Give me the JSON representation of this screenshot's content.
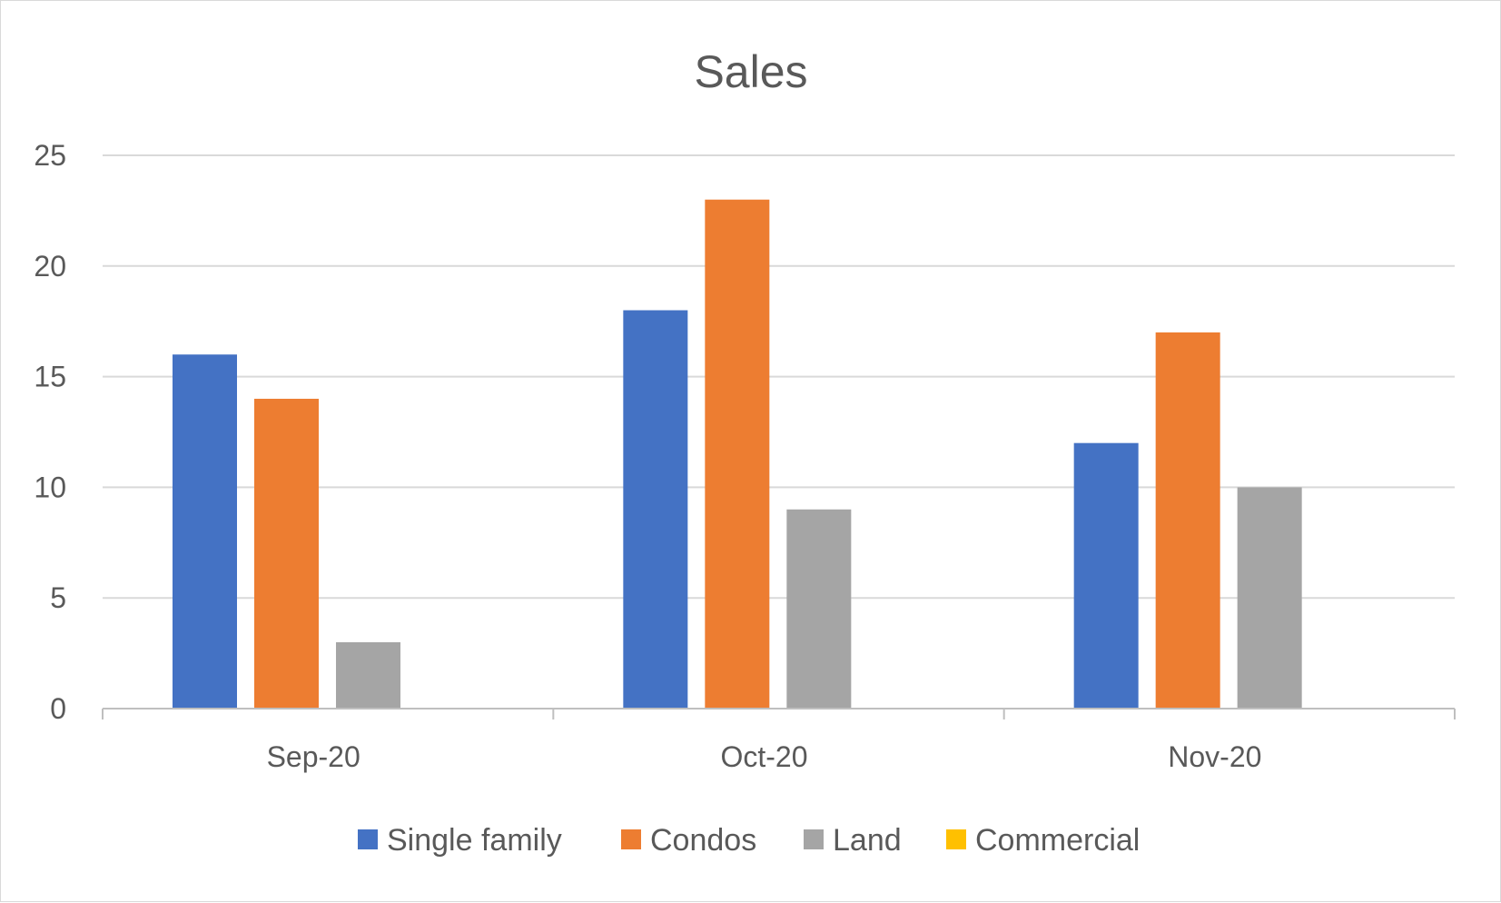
{
  "chart_data": {
    "type": "bar",
    "title": "Sales",
    "categories": [
      "Sep-20",
      "Oct-20",
      "Nov-20"
    ],
    "series": [
      {
        "name": "Single family",
        "color": "#4472c4",
        "values": [
          16,
          18,
          12
        ]
      },
      {
        "name": "Condos",
        "color": "#ed7d31",
        "values": [
          14,
          23,
          17
        ]
      },
      {
        "name": "Land",
        "color": "#a5a5a5",
        "values": [
          3,
          9,
          10
        ]
      },
      {
        "name": "Commercial",
        "color": "#ffc000",
        "values": [
          0,
          0,
          0
        ]
      }
    ],
    "xlabel": "",
    "ylabel": "",
    "ylim": [
      0,
      25
    ],
    "yticks": [
      0,
      5,
      10,
      15,
      20,
      25
    ],
    "grid": true,
    "legend": "bottom"
  }
}
